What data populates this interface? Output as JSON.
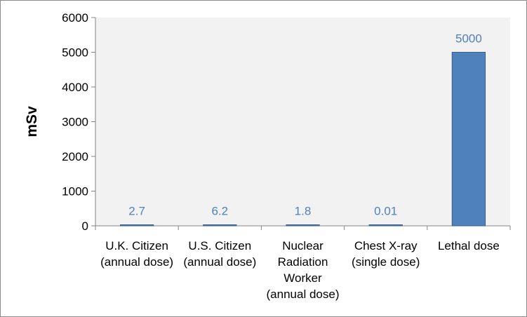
{
  "chart_data": {
    "type": "bar",
    "title": "",
    "xlabel": "",
    "ylabel": "mSv",
    "ylim": [
      0,
      6000
    ],
    "yticks": [
      0,
      1000,
      2000,
      3000,
      4000,
      5000,
      6000
    ],
    "categories": [
      [
        "U.K. Citizen",
        "(annual dose)"
      ],
      [
        "U.S. Citizen",
        "(annual dose)"
      ],
      [
        "Nuclear",
        "Radiation",
        "Worker",
        "(annual dose)"
      ],
      [
        "Chest X-ray",
        "(single dose)"
      ],
      [
        "Lethal dose"
      ]
    ],
    "values": [
      2.7,
      6.2,
      1.8,
      0.01,
      5000
    ],
    "data_labels": [
      "2.7",
      "6.2",
      "1.8",
      "0.01",
      "5000"
    ],
    "grid": false,
    "legend": "none",
    "colors": {
      "bar_fill": "#4f81bd",
      "bar_stroke": "#385d8a",
      "data_label": "#4f81bd",
      "plot_area": "#f2f2f2",
      "axis": "#868686"
    }
  }
}
